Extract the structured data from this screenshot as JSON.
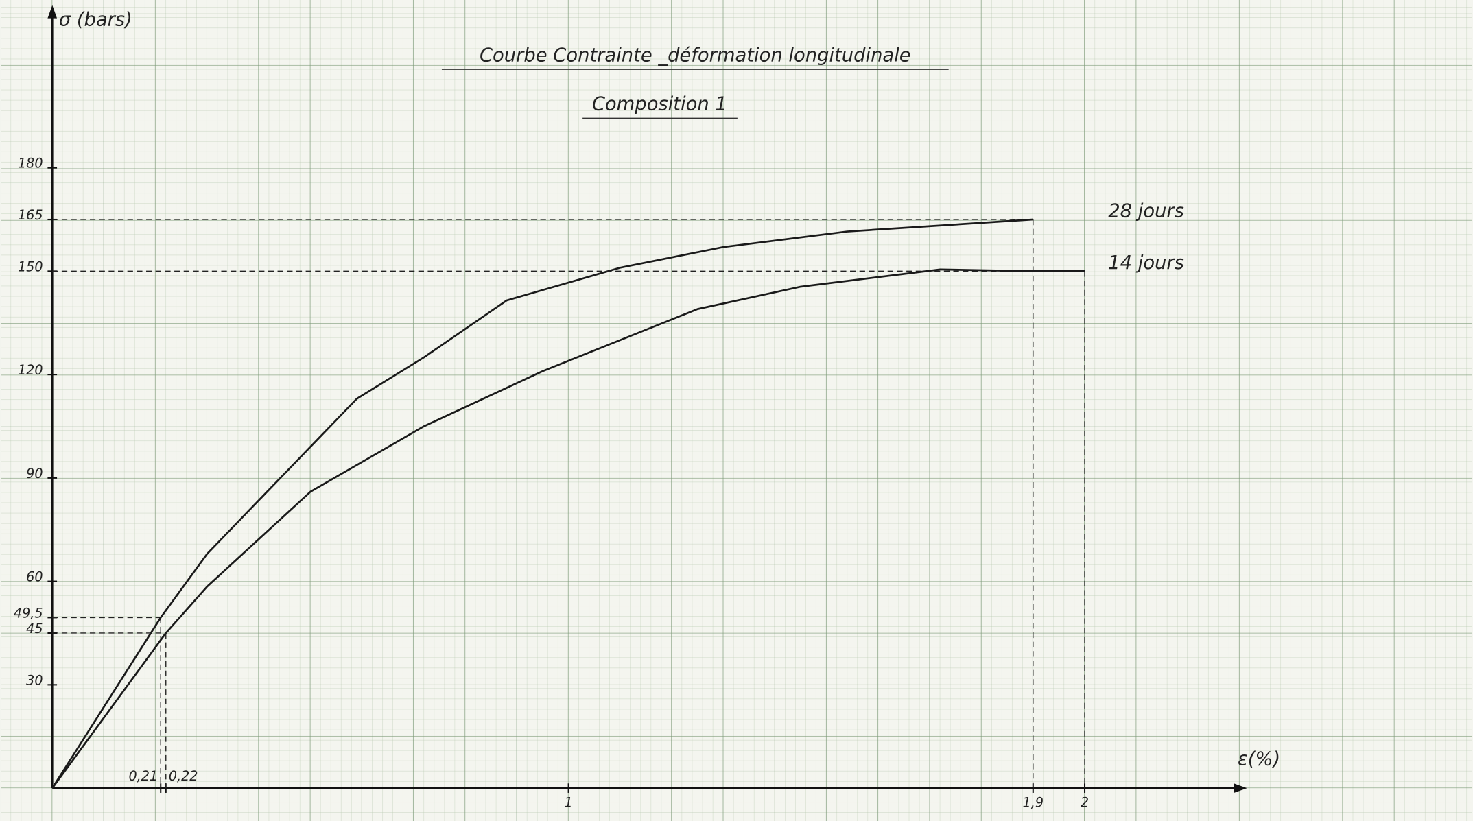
{
  "chart_data": {
    "type": "line",
    "title": "Courbe Contrainte _déformation longitudinale",
    "subtitle": "Composition 1",
    "y_label": "σ (bars)",
    "x_label": "ε(%)",
    "xlim": [
      0,
      2.3
    ],
    "ylim": [
      0,
      225
    ],
    "xticks": [
      {
        "value": 0.21,
        "label": "0,21"
      },
      {
        "value": 0.22,
        "label": "0,22"
      },
      1,
      {
        "value": 1.9,
        "label": "1,9"
      },
      2
    ],
    "yticks": [
      30,
      45,
      {
        "value": 49.5,
        "label": "49,5"
      },
      60,
      90,
      120,
      150,
      165,
      180
    ],
    "series": [
      {
        "name": "28 jours",
        "color": "#1a1a1a",
        "x": [
          0,
          0.21,
          0.3,
          0.59,
          0.72,
          0.88,
          1.1,
          1.3,
          1.54,
          1.9
        ],
        "values": [
          0,
          49.5,
          68,
          113,
          125,
          141.5,
          151,
          157,
          161.5,
          165
        ]
      },
      {
        "name": "14 jours",
        "color": "#1a1a1a",
        "x": [
          0,
          0.22,
          0.3,
          0.5,
          0.72,
          0.95,
          1.25,
          1.45,
          1.72,
          1.9,
          2
        ],
        "values": [
          0,
          45,
          58.5,
          86,
          105,
          121,
          139,
          145.5,
          150.5,
          150,
          150
        ]
      }
    ]
  }
}
